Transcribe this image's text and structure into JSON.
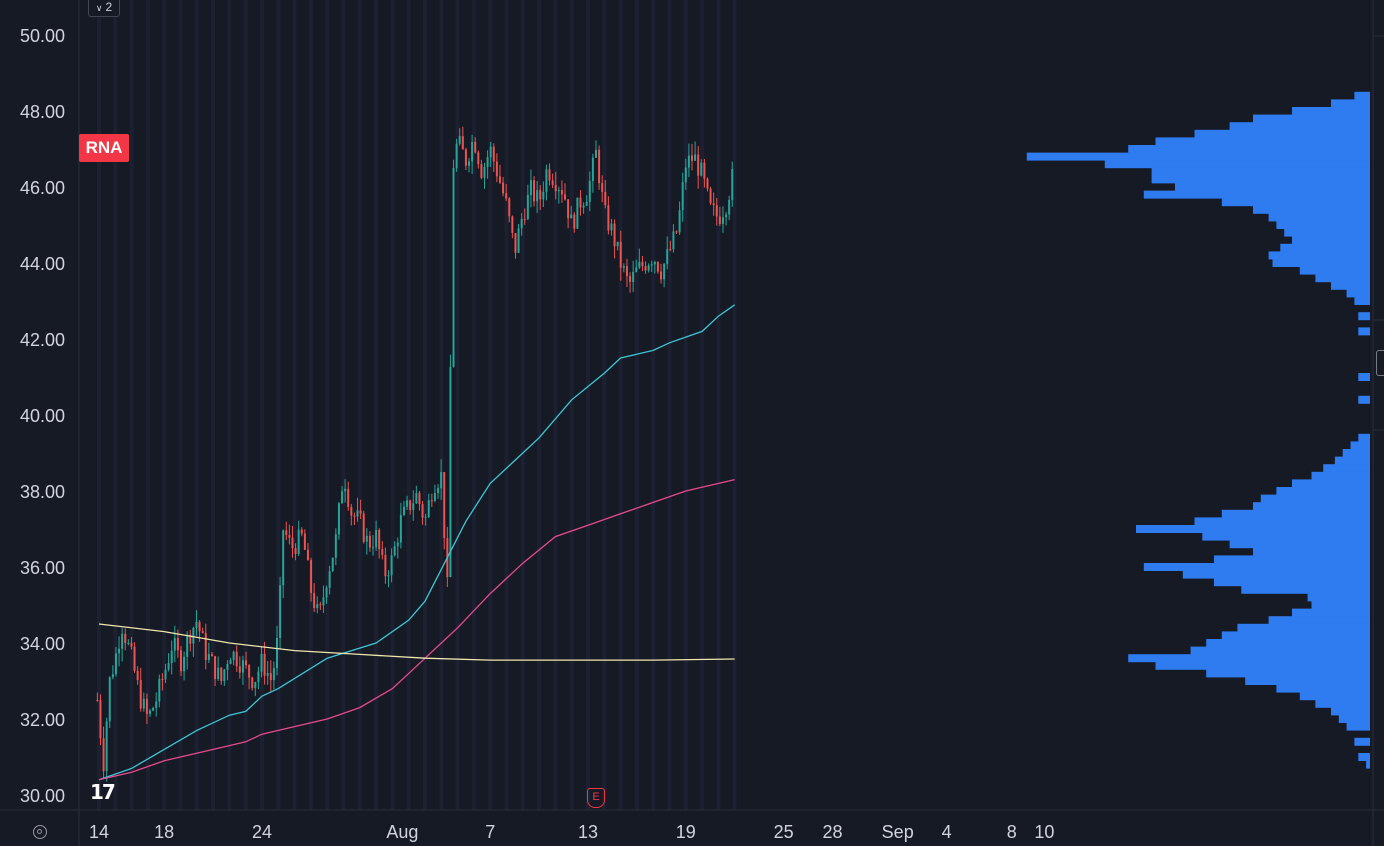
{
  "symbol": "RNA",
  "pane_badge": "2",
  "logo_text": "17",
  "earnings_marker": "E",
  "colors": {
    "background": "#161a25",
    "grid_stripe": "#1c2030",
    "candle_up": "#26a69a",
    "candle_down": "#ef5350",
    "ma_fast": "#3ec6d6",
    "ma_mid": "#e64a8c",
    "ma_slow": "#efe6b0",
    "volume_profile": "#2f7bf0",
    "symbol_badge": "#f23645"
  },
  "chart_data": {
    "type": "candlestick",
    "y_axis": {
      "ticks": [
        "50.00",
        "48.00",
        "46.00",
        "44.00",
        "42.00",
        "40.00",
        "38.00",
        "36.00",
        "34.00",
        "32.00",
        "30.00"
      ],
      "range": [
        29.8,
        50.6
      ]
    },
    "x_axis": {
      "ticks": [
        "14",
        "18",
        "24",
        "Aug",
        "7",
        "13",
        "19",
        "25",
        "28",
        "Sep",
        "4",
        "8",
        "10"
      ],
      "range_days": [
        "Jul 13",
        "Sep 10"
      ]
    },
    "price_path": [
      [
        13.9,
        32.5
      ],
      [
        14.1,
        31.6
      ],
      [
        14.3,
        30.8
      ],
      [
        14.6,
        32.9
      ],
      [
        15.0,
        33.6
      ],
      [
        15.4,
        34.5
      ],
      [
        16.0,
        33.6
      ],
      [
        16.5,
        32.6
      ],
      [
        17.0,
        32.0
      ],
      [
        17.5,
        32.5
      ],
      [
        18.0,
        33.2
      ],
      [
        18.5,
        34.0
      ],
      [
        19.0,
        33.5
      ],
      [
        19.5,
        34.2
      ],
      [
        20.0,
        34.6
      ],
      [
        20.5,
        33.8
      ],
      [
        21.0,
        33.4
      ],
      [
        21.5,
        33.0
      ],
      [
        22.0,
        33.8
      ],
      [
        22.5,
        33.6
      ],
      [
        23.0,
        33.3
      ],
      [
        23.5,
        33.0
      ],
      [
        24.0,
        33.5
      ],
      [
        24.6,
        33.0
      ],
      [
        25.0,
        34.2
      ],
      [
        25.3,
        37.0
      ],
      [
        25.8,
        36.5
      ],
      [
        26.5,
        36.8
      ],
      [
        27.0,
        35.4
      ],
      [
        27.5,
        34.6
      ],
      [
        28.0,
        35.8
      ],
      [
        28.5,
        36.6
      ],
      [
        29.0,
        38.5
      ],
      [
        29.5,
        37.4
      ],
      [
        30.0,
        37.2
      ],
      [
        30.5,
        36.6
      ],
      [
        31.0,
        36.8
      ],
      [
        31.5,
        35.8
      ],
      [
        32.0,
        36.2
      ],
      [
        32.5,
        37.2
      ],
      [
        33.0,
        37.6
      ],
      [
        33.5,
        37.9
      ],
      [
        34.0,
        37.2
      ],
      [
        34.5,
        38.2
      ],
      [
        35.0,
        38.4
      ],
      [
        35.4,
        35.2
      ],
      [
        35.7,
        46.5
      ],
      [
        36.0,
        47.2
      ],
      [
        36.5,
        46.7
      ],
      [
        37.0,
        47.3
      ],
      [
        37.5,
        46.4
      ],
      [
        38.0,
        47.0
      ],
      [
        38.5,
        46.3
      ],
      [
        39.0,
        45.5
      ],
      [
        39.5,
        44.3
      ],
      [
        40.0,
        45.3
      ],
      [
        40.5,
        45.9
      ],
      [
        41.0,
        45.6
      ],
      [
        41.5,
        46.5
      ],
      [
        42.0,
        46.2
      ],
      [
        42.5,
        45.9
      ],
      [
        43.0,
        45.0
      ],
      [
        43.5,
        45.6
      ],
      [
        44.0,
        45.9
      ],
      [
        44.5,
        46.9
      ],
      [
        45.0,
        45.3
      ],
      [
        45.5,
        44.8
      ],
      [
        46.0,
        44.0
      ],
      [
        46.5,
        43.4
      ],
      [
        47.0,
        43.8
      ],
      [
        47.5,
        44.0
      ],
      [
        48.0,
        44.2
      ],
      [
        48.5,
        43.8
      ],
      [
        49.0,
        44.3
      ],
      [
        49.5,
        44.9
      ],
      [
        50.0,
        46.6
      ],
      [
        50.5,
        46.8
      ],
      [
        51.0,
        46.3
      ],
      [
        51.5,
        45.4
      ],
      [
        52.0,
        45.2
      ],
      [
        52.5,
        45.6
      ],
      [
        53.0,
        46.5
      ]
    ],
    "moving_averages": [
      {
        "color_key": "ma_fast",
        "points": [
          [
            14.0,
            30.4
          ],
          [
            16.0,
            30.7
          ],
          [
            20.0,
            31.7
          ],
          [
            22.0,
            32.1
          ],
          [
            23.0,
            32.2
          ],
          [
            24.0,
            32.6
          ],
          [
            25.0,
            32.8
          ],
          [
            28.0,
            33.6
          ],
          [
            31.0,
            34.0
          ],
          [
            33.0,
            34.6
          ],
          [
            34.0,
            35.1
          ],
          [
            36.5,
            37.2
          ],
          [
            38.0,
            38.2
          ],
          [
            41.0,
            39.4
          ],
          [
            43.0,
            40.4
          ],
          [
            45.0,
            41.1
          ],
          [
            46.0,
            41.5
          ],
          [
            48.0,
            41.7
          ],
          [
            49.0,
            41.9
          ],
          [
            51.0,
            42.2
          ],
          [
            52.0,
            42.6
          ],
          [
            53.0,
            42.9
          ]
        ]
      },
      {
        "color_key": "ma_mid",
        "points": [
          [
            14.0,
            30.4
          ],
          [
            16.0,
            30.6
          ],
          [
            18.0,
            30.9
          ],
          [
            22.0,
            31.3
          ],
          [
            23.0,
            31.4
          ],
          [
            24.0,
            31.6
          ],
          [
            25.0,
            31.7
          ],
          [
            28.0,
            32.0
          ],
          [
            30.0,
            32.3
          ],
          [
            32.0,
            32.8
          ],
          [
            33.5,
            33.4
          ],
          [
            36.0,
            34.4
          ],
          [
            38.0,
            35.3
          ],
          [
            40.0,
            36.1
          ],
          [
            42.0,
            36.8
          ],
          [
            44.0,
            37.1
          ],
          [
            46.0,
            37.4
          ],
          [
            48.0,
            37.7
          ],
          [
            50.0,
            38.0
          ],
          [
            53.0,
            38.3
          ]
        ]
      },
      {
        "color_key": "ma_slow",
        "points": [
          [
            14.0,
            34.5
          ],
          [
            18.0,
            34.3
          ],
          [
            22.0,
            34.0
          ],
          [
            26.0,
            33.8
          ],
          [
            30.0,
            33.7
          ],
          [
            34.0,
            33.6
          ],
          [
            38.0,
            33.55
          ],
          [
            44.0,
            33.55
          ],
          [
            48.0,
            33.55
          ],
          [
            53.0,
            33.58
          ]
        ]
      }
    ],
    "volume_profile": [
      [
        48.4,
        0.04
      ],
      [
        48.2,
        0.1
      ],
      [
        48.0,
        0.2
      ],
      [
        47.8,
        0.3
      ],
      [
        47.6,
        0.36
      ],
      [
        47.4,
        0.45
      ],
      [
        47.2,
        0.55
      ],
      [
        47.0,
        0.62
      ],
      [
        46.8,
        0.88
      ],
      [
        46.6,
        0.68
      ],
      [
        46.4,
        0.56
      ],
      [
        46.2,
        0.56
      ],
      [
        46.0,
        0.5
      ],
      [
        45.8,
        0.58
      ],
      [
        45.6,
        0.38
      ],
      [
        45.4,
        0.3
      ],
      [
        45.2,
        0.26
      ],
      [
        45.0,
        0.24
      ],
      [
        44.8,
        0.22
      ],
      [
        44.6,
        0.2
      ],
      [
        44.4,
        0.23
      ],
      [
        44.2,
        0.26
      ],
      [
        44.0,
        0.25
      ],
      [
        43.8,
        0.18
      ],
      [
        43.6,
        0.14
      ],
      [
        43.4,
        0.1
      ],
      [
        43.2,
        0.06
      ],
      [
        43.0,
        0.04
      ],
      [
        42.6,
        0.03
      ],
      [
        42.2,
        0.03
      ],
      [
        41.0,
        0.03
      ],
      [
        40.4,
        0.03
      ],
      [
        39.4,
        0.03
      ],
      [
        39.2,
        0.05
      ],
      [
        39.0,
        0.07
      ],
      [
        38.8,
        0.09
      ],
      [
        38.6,
        0.12
      ],
      [
        38.4,
        0.15
      ],
      [
        38.2,
        0.2
      ],
      [
        38.0,
        0.24
      ],
      [
        37.8,
        0.28
      ],
      [
        37.6,
        0.3
      ],
      [
        37.4,
        0.38
      ],
      [
        37.2,
        0.45
      ],
      [
        37.0,
        0.6
      ],
      [
        36.8,
        0.43
      ],
      [
        36.6,
        0.36
      ],
      [
        36.4,
        0.3
      ],
      [
        36.2,
        0.4
      ],
      [
        36.0,
        0.58
      ],
      [
        35.8,
        0.48
      ],
      [
        35.6,
        0.4
      ],
      [
        35.4,
        0.33
      ],
      [
        35.2,
        0.16
      ],
      [
        35.0,
        0.15
      ],
      [
        34.8,
        0.2
      ],
      [
        34.6,
        0.26
      ],
      [
        34.4,
        0.34
      ],
      [
        34.2,
        0.38
      ],
      [
        34.0,
        0.42
      ],
      [
        33.8,
        0.46
      ],
      [
        33.6,
        0.62
      ],
      [
        33.4,
        0.55
      ],
      [
        33.2,
        0.42
      ],
      [
        33.0,
        0.32
      ],
      [
        32.8,
        0.24
      ],
      [
        32.6,
        0.18
      ],
      [
        32.4,
        0.14
      ],
      [
        32.2,
        0.1
      ],
      [
        32.0,
        0.08
      ],
      [
        31.8,
        0.06
      ],
      [
        31.4,
        0.04
      ],
      [
        31.0,
        0.03
      ],
      [
        30.8,
        0.01
      ]
    ]
  }
}
